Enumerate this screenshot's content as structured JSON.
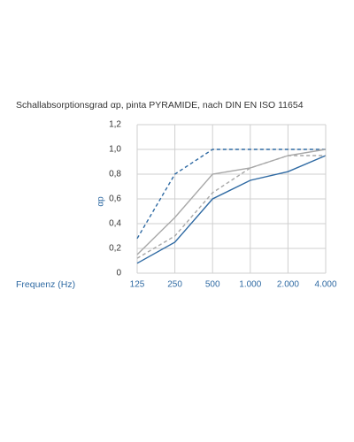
{
  "chart_data": {
    "type": "line",
    "title": "Schallabsorptionsgrad αp, pinta PYRAMIDE, nach DIN EN ISO 11654",
    "x_label": "Frequenz (Hz)",
    "y_label": "αp",
    "categories": [
      "125",
      "250",
      "500",
      "1.000",
      "2.000",
      "4.000"
    ],
    "series": [
      {
        "color": "#2f6aa3",
        "dashed": true,
        "values": [
          0.28,
          0.8,
          1.0,
          1.0,
          1.0,
          1.0
        ]
      },
      {
        "color": "#2f6aa3",
        "dashed": false,
        "values": [
          0.08,
          0.25,
          0.6,
          0.75,
          0.82,
          0.95
        ]
      },
      {
        "color": "#a8a8a8",
        "dashed": false,
        "values": [
          0.15,
          0.45,
          0.8,
          0.85,
          0.95,
          1.0
        ]
      },
      {
        "color": "#a8a8a8",
        "dashed": true,
        "values": [
          0.12,
          0.3,
          0.65,
          0.85,
          0.95,
          0.95
        ]
      }
    ],
    "ylim": [
      0,
      1.2
    ],
    "yticks": [
      0,
      {
        "value": 0.2,
        "label": "0,2"
      },
      {
        "value": 0.4,
        "label": "0,4"
      },
      {
        "value": 0.6,
        "label": "0,6"
      },
      {
        "value": 0.8,
        "label": "0,8"
      },
      {
        "value": 1.0,
        "label": "1,0"
      },
      {
        "value": 1.2,
        "label": "1,2"
      }
    ],
    "grid": true
  }
}
